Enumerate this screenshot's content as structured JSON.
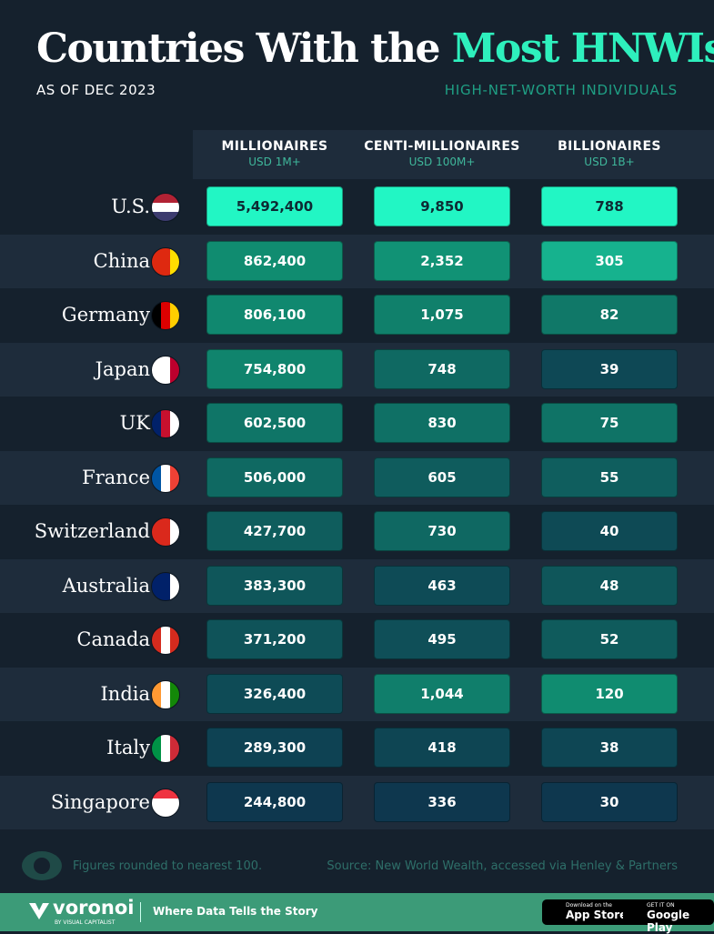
{
  "header": {
    "title_plain": "Countries With the",
    "title_highlight": "Most HNWIs",
    "date": "AS OF DEC 2023",
    "subtitle": "HIGH-NET-WORTH INDIVIDUALS"
  },
  "table": {
    "columns": [
      {
        "title": "MILLIONAIRES",
        "unit": "USD 1M+"
      },
      {
        "title": "CENTI-MILLIONAIRES",
        "unit": "USD 100M+"
      },
      {
        "title": "BILLIONAIRES",
        "unit": "USD 1B+"
      }
    ],
    "rows": [
      [
        "U.S.",
        "5,492,400",
        "9,850",
        "788"
      ],
      [
        "China",
        "862,400",
        "2,352",
        "305"
      ],
      [
        "Germany",
        "806,100",
        "1,075",
        "82"
      ],
      [
        "Japan",
        "754,800",
        "748",
        "39"
      ],
      [
        "UK",
        "602,500",
        "830",
        "75"
      ],
      [
        "France",
        "506,000",
        "605",
        "55"
      ],
      [
        "Switzerland",
        "427,700",
        "730",
        "40"
      ],
      [
        "Australia",
        "383,300",
        "463",
        "48"
      ],
      [
        "Canada",
        "371,200",
        "495",
        "52"
      ],
      [
        "India",
        "326,400",
        "1,044",
        "120"
      ],
      [
        "Italy",
        "289,300",
        "418",
        "38"
      ],
      [
        "Singapore",
        "244,800",
        "336",
        "30"
      ]
    ]
  },
  "footer": {
    "note": "Figures rounded to nearest 100.",
    "source": "Source: New World Wealth, accessed via Henley & Partners",
    "brand": "voronoi",
    "brand_sub": "BY VISUAL CAPITALIST",
    "tagline": "Where Data Tells the Story",
    "app_store_small": "Download on the",
    "app_store": "App Store",
    "google_small": "GET IT ON",
    "google": "Google Play"
  }
}
